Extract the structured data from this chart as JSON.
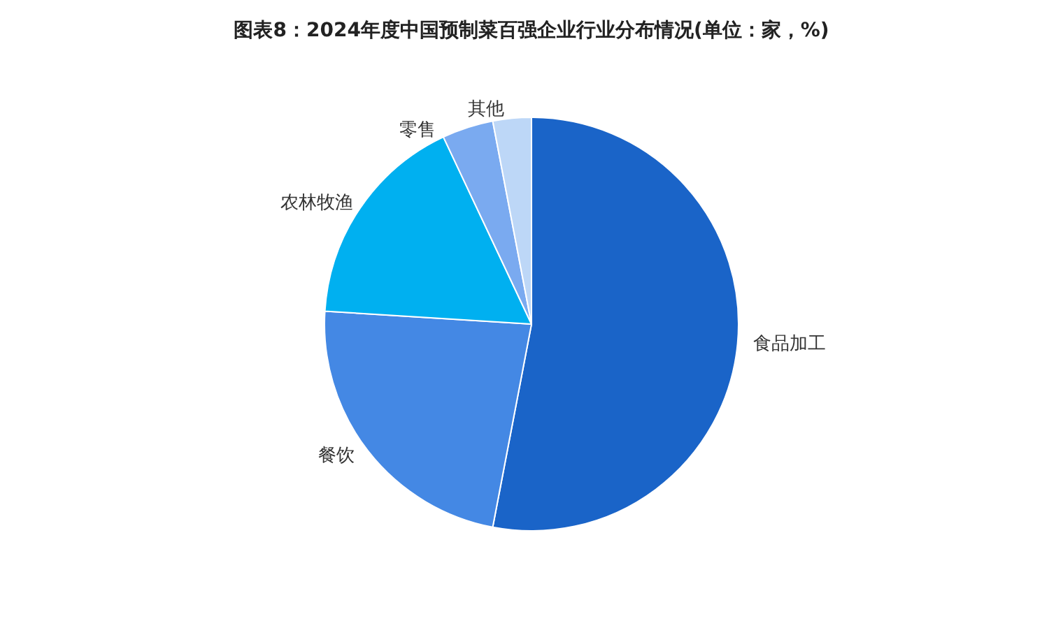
{
  "chart_data": {
    "type": "pie",
    "title": "图表8：2024年度中国预制菜百强企业行业分布情况(单位：家，%)",
    "categories": [
      "食品加工",
      "餐饮",
      "农林牧渔",
      "零售",
      "其他"
    ],
    "values": [
      53,
      23,
      17,
      4,
      3
    ],
    "colors": [
      "#1a64c8",
      "#4488e4",
      "#00b0f0",
      "#7aaaf0",
      "#bdd7f7"
    ],
    "legend": false
  }
}
